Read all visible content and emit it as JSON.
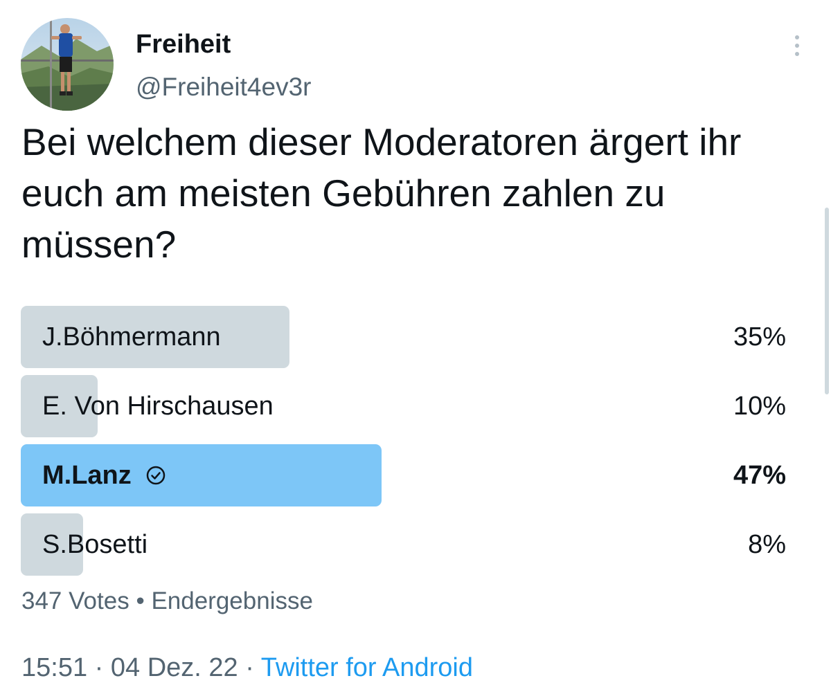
{
  "author": {
    "display_name": "Freiheit",
    "handle": "@Freiheit4ev3r"
  },
  "tweet": {
    "text": "Bei welchem dieser Moderatoren ärgert ihr euch am meisten Gebühren zahlen zu müssen?"
  },
  "poll": {
    "options": [
      {
        "label": "J.Böhmermann",
        "percent_text": "35%",
        "percent": 35,
        "winner": false
      },
      {
        "label": "E. Von Hirschausen",
        "percent_text": "10%",
        "percent": 10,
        "winner": false
      },
      {
        "label": "M.Lanz",
        "percent_text": "47%",
        "percent": 47,
        "winner": true
      },
      {
        "label": "S.Bosetti",
        "percent_text": "8%",
        "percent": 8,
        "winner": false
      }
    ],
    "votes": "347 Votes",
    "separator": "•",
    "status": "Endergebnisse"
  },
  "meta": {
    "time": "15:51",
    "date": "04 Dez. 22",
    "separator": "·",
    "source": "Twitter for Android"
  },
  "icons": {
    "more": "more-vertical-icon",
    "winner": "check-circle-icon"
  },
  "colors": {
    "bar": "#cfd9de",
    "winner_bar": "#7dc6f7",
    "link": "#1d9bf0",
    "secondary_text": "#536471"
  }
}
